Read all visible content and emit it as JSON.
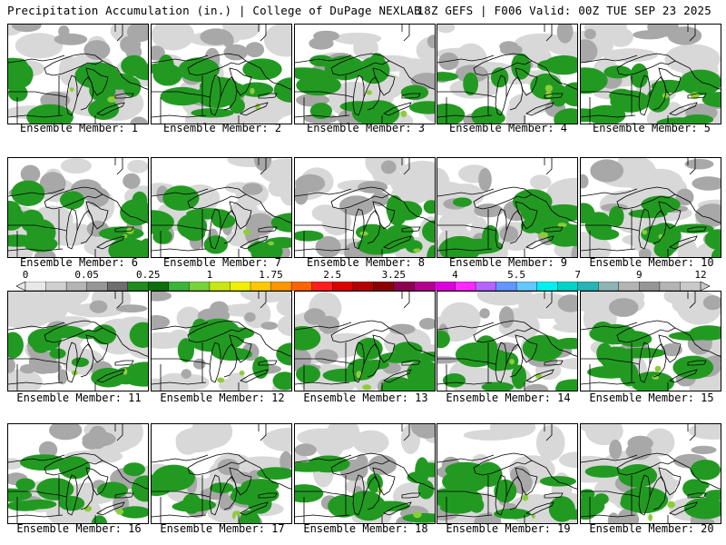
{
  "header": {
    "title": "Precipitation Accumulation (in.) | College of DuPage NEXLAB",
    "run_info": "18Z GEFS | F006 Valid: 00Z TUE SEP 23 2025"
  },
  "panels": [
    {
      "label": "Ensemble Member: 1"
    },
    {
      "label": "Ensemble Member: 2"
    },
    {
      "label": "Ensemble Member: 3"
    },
    {
      "label": "Ensemble Member: 4"
    },
    {
      "label": "Ensemble Member: 5"
    },
    {
      "label": "Ensemble Member: 6"
    },
    {
      "label": "Ensemble Member: 7"
    },
    {
      "label": "Ensemble Member: 8"
    },
    {
      "label": "Ensemble Member: 9"
    },
    {
      "label": "Ensemble Member: 10"
    },
    {
      "label": "Ensemble Member: 11"
    },
    {
      "label": "Ensemble Member: 12"
    },
    {
      "label": "Ensemble Member: 13"
    },
    {
      "label": "Ensemble Member: 14"
    },
    {
      "label": "Ensemble Member: 15"
    },
    {
      "label": "Ensemble Member: 16"
    },
    {
      "label": "Ensemble Member: 17"
    },
    {
      "label": "Ensemble Member: 18"
    },
    {
      "label": "Ensemble Member: 19"
    },
    {
      "label": "Ensemble Member: 20"
    }
  ],
  "colorbar": {
    "labels": [
      "0",
      "0.05",
      "0.25",
      "1",
      "1.75",
      "2.5",
      "3.25",
      "4",
      "5.5",
      "7",
      "9",
      "12"
    ],
    "colors": [
      "#e8e8e8",
      "#d0d0d0",
      "#b4b4b4",
      "#969696",
      "#6e6e6e",
      "#1e8c1e",
      "#0e6e0e",
      "#3cb43c",
      "#78d23c",
      "#c8e614",
      "#f0f000",
      "#ffc800",
      "#ff9600",
      "#ff6400",
      "#ff1e1e",
      "#dc0000",
      "#b40000",
      "#8c0000",
      "#8c0050",
      "#b4008c",
      "#dc00dc",
      "#ff28ff",
      "#b464ff",
      "#6496ff",
      "#64c8ff",
      "#00f0f0",
      "#00d2c8",
      "#28b4b4",
      "#8cb4b4",
      "#b4b4b4",
      "#969696",
      "#b4b4b4",
      "#c8c8c8"
    ],
    "label_slots": [
      0,
      3,
      6,
      9,
      12,
      15,
      18,
      21,
      24,
      27,
      30,
      33
    ]
  },
  "map_colors": {
    "light_gray": "#d8d8d8",
    "mid_gray": "#a8a8a8",
    "green": "#229a22",
    "light_green": "#8ccd3a",
    "outline": "#000000"
  }
}
